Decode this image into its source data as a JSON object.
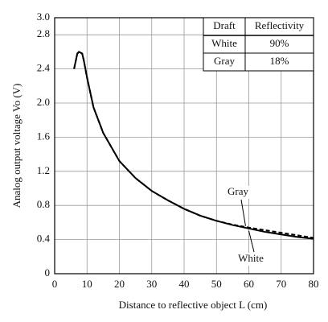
{
  "chart_data": {
    "type": "line",
    "xlabel": "Distance to reflective object L (cm)",
    "ylabel": "Analog output voltage Vo (V)",
    "x": [
      6,
      7,
      7.5,
      8.5,
      9,
      10,
      12,
      15,
      20,
      25,
      30,
      35,
      40,
      45,
      50,
      55,
      60,
      65,
      70,
      75,
      80
    ],
    "series": [
      {
        "name": "White",
        "color": "#000000",
        "dash": false,
        "values": [
          2.4,
          2.58,
          2.6,
          2.58,
          2.5,
          2.3,
          1.95,
          1.65,
          1.32,
          1.12,
          0.97,
          0.86,
          0.76,
          0.68,
          0.62,
          0.57,
          0.53,
          0.49,
          0.46,
          0.43,
          0.41
        ]
      },
      {
        "name": "Gray",
        "color": "#000000",
        "dash": true,
        "values": [
          2.4,
          2.58,
          2.6,
          2.58,
          2.5,
          2.3,
          1.95,
          1.65,
          1.32,
          1.12,
          0.97,
          0.86,
          0.76,
          0.68,
          0.62,
          0.575,
          0.54,
          0.51,
          0.48,
          0.45,
          0.42
        ]
      }
    ],
    "xlim": [
      0,
      80
    ],
    "xticks": [
      0,
      10,
      20,
      30,
      40,
      50,
      60,
      70,
      80
    ],
    "ylim": [
      0,
      3
    ],
    "yticks": [
      0,
      0.4,
      0.8,
      1.2,
      1.6,
      {
        "value": 2,
        "label": "2.0"
      },
      2.4,
      2.8,
      {
        "value": 3,
        "label": "3.0"
      }
    ],
    "grid": true,
    "table": {
      "header": [
        "Draft",
        "Reflectivity"
      ],
      "rows": [
        [
          "White",
          "90%"
        ],
        [
          "Gray",
          "18%"
        ]
      ]
    }
  }
}
